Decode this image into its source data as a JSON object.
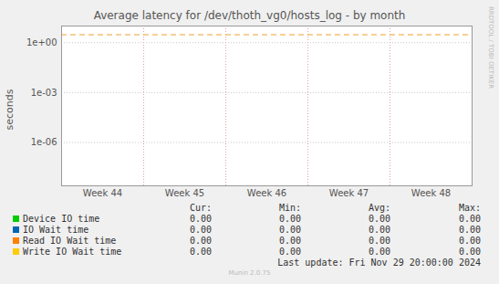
{
  "chart_data": {
    "type": "line",
    "title": "Average latency for /dev/thoth_vg0/hosts_log - by month",
    "y_label": "seconds",
    "categories": [
      "Week 44",
      "Week 45",
      "Week 46",
      "Week 47",
      "Week 48"
    ],
    "series": [
      {
        "name": "Device IO time",
        "color": "#00CC00",
        "values": [
          0,
          0,
          0,
          0,
          0
        ],
        "stats": [
          "0.00",
          "0.00",
          "0.00",
          "0.00"
        ]
      },
      {
        "name": "IO Wait time",
        "color": "#0066B3",
        "values": [
          0,
          0,
          0,
          0,
          0
        ],
        "stats": [
          "0.00",
          "0.00",
          "0.00",
          "0.00"
        ]
      },
      {
        "name": "Read IO Wait time",
        "color": "#FF8000",
        "values": [
          0,
          0,
          0,
          0,
          0
        ],
        "stats": [
          "0.00",
          "0.00",
          "0.00",
          "0.00"
        ]
      },
      {
        "name": "Write IO Wait time",
        "color": "#FFCC00",
        "values": [
          0,
          0,
          0,
          0,
          0
        ],
        "stats": [
          "0.00",
          "0.00",
          "0.00",
          "0.00"
        ]
      }
    ],
    "stats_columns": [
      "Cur:",
      "Min:",
      "Avg:",
      "Max:"
    ],
    "log": "y",
    "grid": true,
    "ylim": [
      2.5e-09,
      10
    ],
    "yticks": [
      {
        "value": 1,
        "label": "1e+00"
      },
      {
        "value": 0.001,
        "label": "1e-03"
      },
      {
        "value": 1e-06,
        "label": "1e-06"
      }
    ],
    "rules": [
      {
        "value": 3,
        "color": "#F0A030",
        "line_style": "dashed"
      }
    ],
    "last_update": "Last update: Fri Nov 29 20:00:00 2024",
    "footer": "Munin 2.0.75",
    "watermark": "RRDTOOL / TOBI OETIKER"
  }
}
